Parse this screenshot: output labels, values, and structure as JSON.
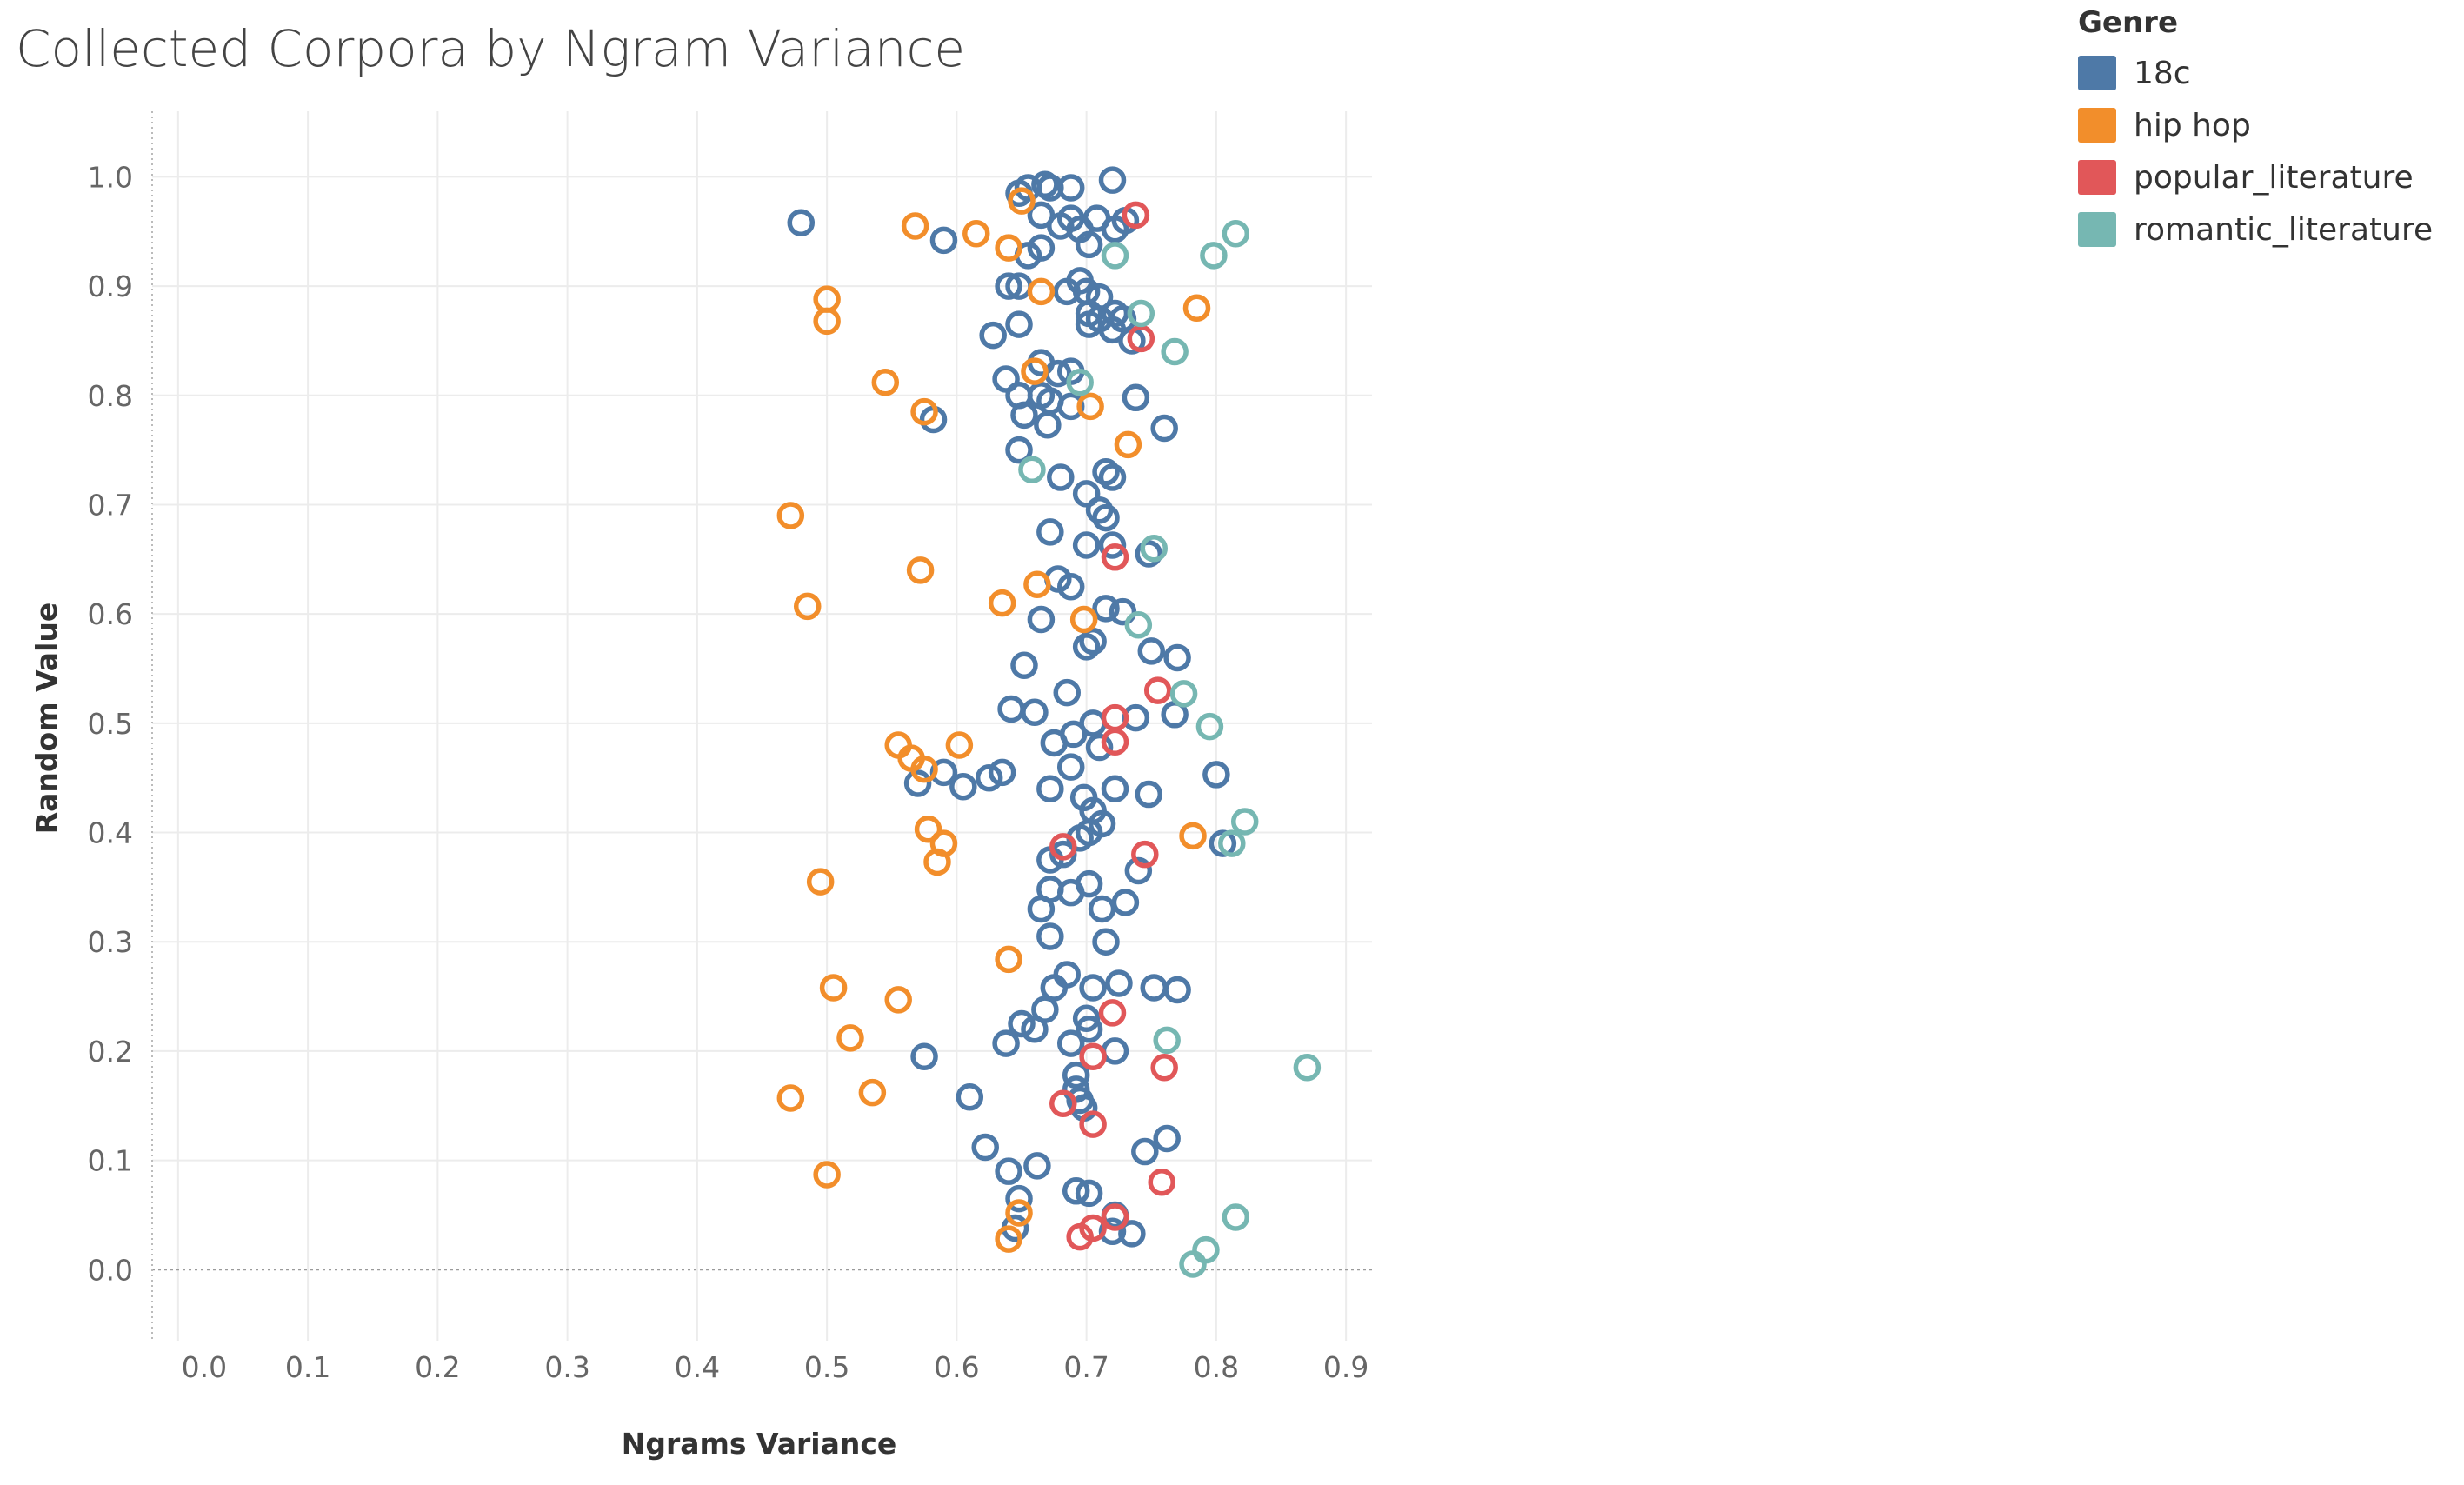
{
  "chart_data": {
    "type": "scatter",
    "title": "Collected Corpora by Ngram Variance",
    "xlabel": "Ngrams Variance",
    "ylabel": "Random Value",
    "xlim": [
      -0.02,
      0.92
    ],
    "ylim": [
      -0.065,
      1.06
    ],
    "x_ticks": [
      "0.0",
      "0.1",
      "0.2",
      "0.3",
      "0.4",
      "0.5",
      "0.6",
      "0.7",
      "0.8",
      "0.9"
    ],
    "y_ticks": [
      "0.0",
      "0.1",
      "0.2",
      "0.3",
      "0.4",
      "0.5",
      "0.6",
      "0.7",
      "0.8",
      "0.9",
      "1.0"
    ],
    "grid": true,
    "legend_position": "top-right",
    "legend_title": "Genre",
    "series": [
      {
        "name": "18c",
        "color": "#4e79a7",
        "points": [
          [
            0.48,
            0.958
          ],
          [
            0.59,
            0.942
          ],
          [
            0.648,
            0.985
          ],
          [
            0.655,
            0.99
          ],
          [
            0.668,
            0.993
          ],
          [
            0.672,
            0.99
          ],
          [
            0.688,
            0.99
          ],
          [
            0.72,
            0.997
          ],
          [
            0.665,
            0.965
          ],
          [
            0.688,
            0.962
          ],
          [
            0.708,
            0.962
          ],
          [
            0.68,
            0.955
          ],
          [
            0.695,
            0.952
          ],
          [
            0.722,
            0.952
          ],
          [
            0.73,
            0.96
          ],
          [
            0.665,
            0.935
          ],
          [
            0.655,
            0.928
          ],
          [
            0.702,
            0.938
          ],
          [
            0.64,
            0.9
          ],
          [
            0.648,
            0.9
          ],
          [
            0.685,
            0.895
          ],
          [
            0.695,
            0.905
          ],
          [
            0.7,
            0.895
          ],
          [
            0.71,
            0.89
          ],
          [
            0.702,
            0.875
          ],
          [
            0.722,
            0.875
          ],
          [
            0.728,
            0.87
          ],
          [
            0.702,
            0.865
          ],
          [
            0.71,
            0.87
          ],
          [
            0.72,
            0.86
          ],
          [
            0.628,
            0.855
          ],
          [
            0.648,
            0.865
          ],
          [
            0.735,
            0.85
          ],
          [
            0.638,
            0.815
          ],
          [
            0.665,
            0.83
          ],
          [
            0.678,
            0.82
          ],
          [
            0.688,
            0.822
          ],
          [
            0.648,
            0.8
          ],
          [
            0.665,
            0.8
          ],
          [
            0.672,
            0.795
          ],
          [
            0.688,
            0.79
          ],
          [
            0.738,
            0.798
          ],
          [
            0.582,
            0.778
          ],
          [
            0.652,
            0.782
          ],
          [
            0.67,
            0.773
          ],
          [
            0.76,
            0.77
          ],
          [
            0.648,
            0.75
          ],
          [
            0.68,
            0.725
          ],
          [
            0.715,
            0.73
          ],
          [
            0.72,
            0.725
          ],
          [
            0.7,
            0.71
          ],
          [
            0.71,
            0.695
          ],
          [
            0.715,
            0.688
          ],
          [
            0.672,
            0.675
          ],
          [
            0.7,
            0.663
          ],
          [
            0.72,
            0.663
          ],
          [
            0.748,
            0.655
          ],
          [
            0.678,
            0.632
          ],
          [
            0.688,
            0.625
          ],
          [
            0.715,
            0.605
          ],
          [
            0.728,
            0.602
          ],
          [
            0.665,
            0.595
          ],
          [
            0.705,
            0.575
          ],
          [
            0.7,
            0.57
          ],
          [
            0.75,
            0.566
          ],
          [
            0.77,
            0.56
          ],
          [
            0.652,
            0.553
          ],
          [
            0.685,
            0.528
          ],
          [
            0.642,
            0.513
          ],
          [
            0.66,
            0.51
          ],
          [
            0.705,
            0.5
          ],
          [
            0.738,
            0.505
          ],
          [
            0.768,
            0.508
          ],
          [
            0.69,
            0.49
          ],
          [
            0.675,
            0.482
          ],
          [
            0.71,
            0.478
          ],
          [
            0.688,
            0.46
          ],
          [
            0.59,
            0.455
          ],
          [
            0.635,
            0.455
          ],
          [
            0.625,
            0.45
          ],
          [
            0.57,
            0.445
          ],
          [
            0.605,
            0.442
          ],
          [
            0.672,
            0.44
          ],
          [
            0.722,
            0.44
          ],
          [
            0.748,
            0.435
          ],
          [
            0.8,
            0.453
          ],
          [
            0.698,
            0.432
          ],
          [
            0.705,
            0.42
          ],
          [
            0.712,
            0.408
          ],
          [
            0.695,
            0.395
          ],
          [
            0.702,
            0.4
          ],
          [
            0.805,
            0.39
          ],
          [
            0.672,
            0.375
          ],
          [
            0.682,
            0.38
          ],
          [
            0.74,
            0.365
          ],
          [
            0.702,
            0.353
          ],
          [
            0.672,
            0.348
          ],
          [
            0.688,
            0.345
          ],
          [
            0.665,
            0.33
          ],
          [
            0.712,
            0.33
          ],
          [
            0.73,
            0.336
          ],
          [
            0.672,
            0.305
          ],
          [
            0.715,
            0.3
          ],
          [
            0.685,
            0.27
          ],
          [
            0.675,
            0.258
          ],
          [
            0.705,
            0.258
          ],
          [
            0.725,
            0.262
          ],
          [
            0.752,
            0.258
          ],
          [
            0.77,
            0.256
          ],
          [
            0.65,
            0.225
          ],
          [
            0.668,
            0.238
          ],
          [
            0.66,
            0.22
          ],
          [
            0.7,
            0.23
          ],
          [
            0.702,
            0.22
          ],
          [
            0.638,
            0.207
          ],
          [
            0.688,
            0.207
          ],
          [
            0.722,
            0.2
          ],
          [
            0.575,
            0.195
          ],
          [
            0.692,
            0.178
          ],
          [
            0.692,
            0.165
          ],
          [
            0.695,
            0.155
          ],
          [
            0.698,
            0.148
          ],
          [
            0.61,
            0.158
          ],
          [
            0.622,
            0.112
          ],
          [
            0.762,
            0.12
          ],
          [
            0.745,
            0.108
          ],
          [
            0.64,
            0.09
          ],
          [
            0.662,
            0.095
          ],
          [
            0.692,
            0.072
          ],
          [
            0.702,
            0.07
          ],
          [
            0.648,
            0.065
          ],
          [
            0.722,
            0.05
          ],
          [
            0.645,
            0.038
          ],
          [
            0.72,
            0.035
          ],
          [
            0.735,
            0.033
          ]
        ]
      },
      {
        "name": "hip hop",
        "color": "#f28e2b",
        "points": [
          [
            0.568,
            0.955
          ],
          [
            0.615,
            0.948
          ],
          [
            0.64,
            0.935
          ],
          [
            0.65,
            0.978
          ],
          [
            0.665,
            0.895
          ],
          [
            0.5,
            0.888
          ],
          [
            0.5,
            0.868
          ],
          [
            0.785,
            0.88
          ],
          [
            0.545,
            0.812
          ],
          [
            0.66,
            0.822
          ],
          [
            0.575,
            0.785
          ],
          [
            0.703,
            0.79
          ],
          [
            0.732,
            0.755
          ],
          [
            0.472,
            0.69
          ],
          [
            0.572,
            0.64
          ],
          [
            0.662,
            0.627
          ],
          [
            0.485,
            0.607
          ],
          [
            0.635,
            0.61
          ],
          [
            0.698,
            0.595
          ],
          [
            0.555,
            0.48
          ],
          [
            0.565,
            0.468
          ],
          [
            0.602,
            0.48
          ],
          [
            0.575,
            0.458
          ],
          [
            0.578,
            0.403
          ],
          [
            0.59,
            0.39
          ],
          [
            0.782,
            0.397
          ],
          [
            0.585,
            0.373
          ],
          [
            0.495,
            0.355
          ],
          [
            0.64,
            0.284
          ],
          [
            0.505,
            0.258
          ],
          [
            0.555,
            0.247
          ],
          [
            0.518,
            0.212
          ],
          [
            0.472,
            0.157
          ],
          [
            0.535,
            0.162
          ],
          [
            0.5,
            0.087
          ],
          [
            0.648,
            0.052
          ],
          [
            0.64,
            0.028
          ]
        ]
      },
      {
        "name": "popular_literature",
        "color": "#e15759",
        "points": [
          [
            0.738,
            0.965
          ],
          [
            0.742,
            0.852
          ],
          [
            0.722,
            0.652
          ],
          [
            0.755,
            0.53
          ],
          [
            0.722,
            0.505
          ],
          [
            0.722,
            0.483
          ],
          [
            0.682,
            0.387
          ],
          [
            0.745,
            0.38
          ],
          [
            0.72,
            0.235
          ],
          [
            0.705,
            0.195
          ],
          [
            0.76,
            0.185
          ],
          [
            0.682,
            0.152
          ],
          [
            0.705,
            0.133
          ],
          [
            0.758,
            0.08
          ],
          [
            0.722,
            0.048
          ],
          [
            0.695,
            0.03
          ],
          [
            0.705,
            0.038
          ]
        ]
      },
      {
        "name": "romantic_literature",
        "color": "#76b7b2",
        "points": [
          [
            0.815,
            0.948
          ],
          [
            0.798,
            0.928
          ],
          [
            0.722,
            0.928
          ],
          [
            0.742,
            0.875
          ],
          [
            0.768,
            0.84
          ],
          [
            0.695,
            0.812
          ],
          [
            0.658,
            0.732
          ],
          [
            0.752,
            0.66
          ],
          [
            0.74,
            0.59
          ],
          [
            0.775,
            0.527
          ],
          [
            0.795,
            0.497
          ],
          [
            0.822,
            0.41
          ],
          [
            0.812,
            0.39
          ],
          [
            0.762,
            0.21
          ],
          [
            0.87,
            0.185
          ],
          [
            0.815,
            0.048
          ],
          [
            0.792,
            0.018
          ],
          [
            0.782,
            0.005
          ]
        ]
      }
    ]
  }
}
